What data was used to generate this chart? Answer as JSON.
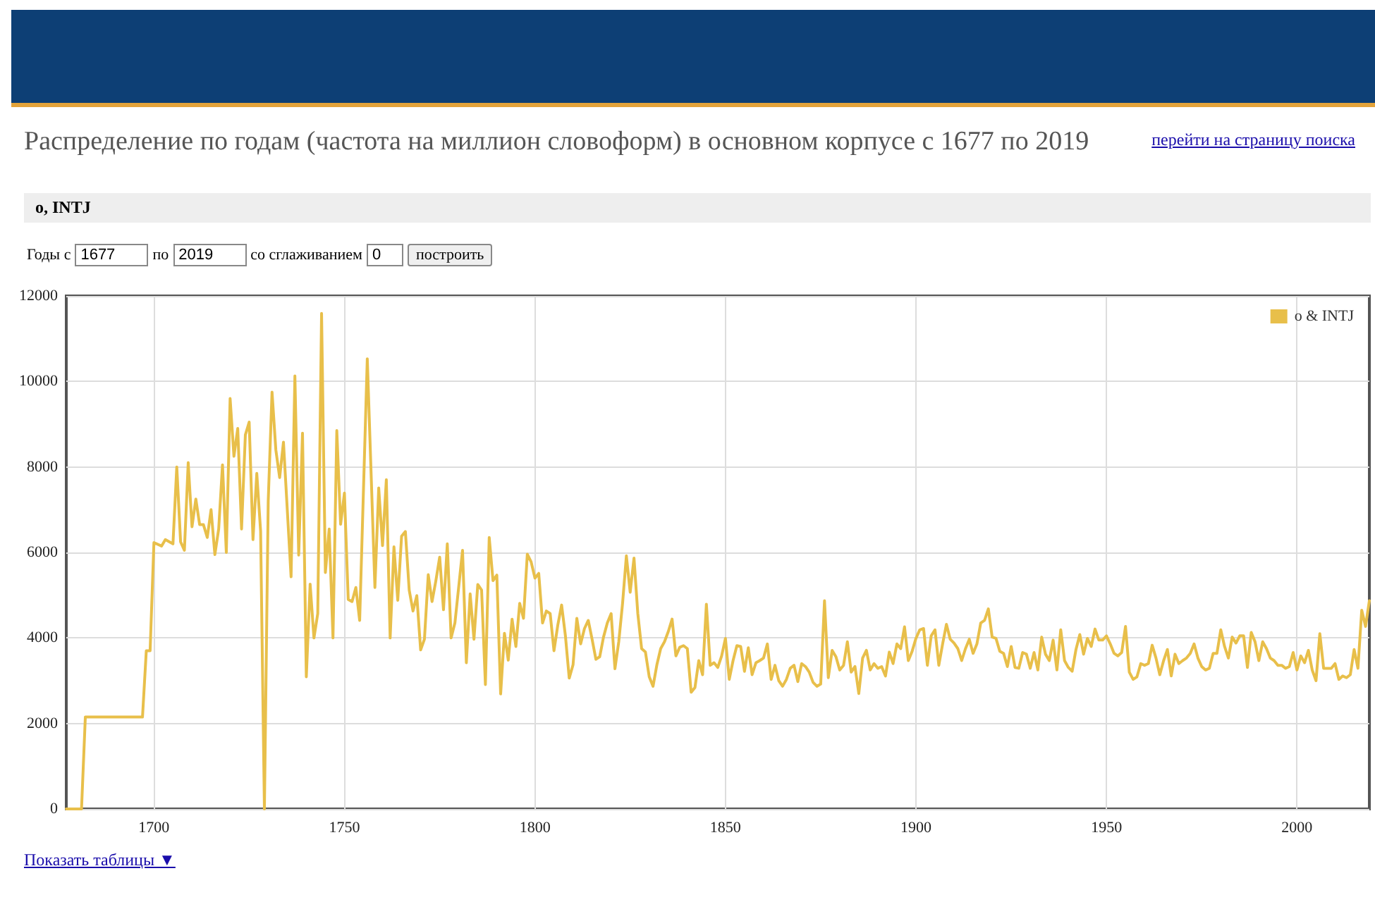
{
  "chart_data": {
    "type": "line",
    "title": "Распределение по годам (частота на миллион словоформ) в основном корпусе с 1677 по 2019",
    "subtitle": "о, INTJ",
    "annotations": [
      "перейти на страницу поиска",
      "Годы с",
      "1677",
      "по",
      "2019",
      "со сглаживанием",
      "0",
      "построить",
      "Показать таблицы ▼"
    ],
    "xlim": [
      1677,
      2019
    ],
    "xticks": [
      1700,
      1750,
      1800,
      1850,
      1900,
      1950,
      2000
    ],
    "ylim": [
      0,
      12000
    ],
    "yticks": [
      0,
      2000,
      4000,
      6000,
      8000,
      10000,
      12000
    ],
    "grid": true,
    "legend": "top right",
    "marker": "none",
    "line_style": "solid",
    "series": [
      {
        "name": "о & INTJ",
        "color": "#e8bf4a",
        "x": [
          1677,
          1681,
          1682,
          1697,
          1698,
          1699,
          1700,
          1702,
          1703,
          1705,
          1706,
          1707,
          1708,
          1709,
          1710,
          1711,
          1712,
          1713,
          1714,
          1715,
          1716,
          1717,
          1718,
          1719,
          1720,
          1721,
          1722,
          1723,
          1724,
          1725,
          1726,
          1727,
          1728,
          1729,
          1730,
          1731,
          1732,
          1733,
          1734,
          1736,
          1737,
          1738,
          1739,
          1740,
          1741,
          1742,
          1743,
          1744,
          1745,
          1746,
          1747,
          1748,
          1749,
          1750,
          1751,
          1752,
          1753,
          1754,
          1756,
          1758,
          1759,
          1760,
          1761,
          1762,
          1763,
          1764,
          1765,
          1766,
          1767,
          1768,
          1769,
          1770,
          1771,
          1772,
          1773,
          1774,
          1775,
          1776,
          1777,
          1778,
          1779,
          1781,
          1782,
          1783,
          1784,
          1785,
          1786,
          1787,
          1788,
          1789,
          1790,
          1791,
          1792,
          1793,
          1794,
          1795,
          1796,
          1797,
          1798,
          1799,
          1800,
          1801,
          1802,
          1803,
          1804,
          1805,
          1806,
          1807,
          1808,
          1809,
          1810,
          1811,
          1812,
          1813,
          1814,
          1815,
          1816,
          1817,
          1818,
          1819,
          1820,
          1821,
          1822,
          1823,
          1824,
          1825,
          1826,
          1827,
          1828,
          1829,
          1830,
          1831,
          1832,
          1833,
          1834,
          1835,
          1836,
          1837,
          1838,
          1839,
          1840,
          1841,
          1842,
          1843,
          1844,
          1845,
          1846,
          1847,
          1848,
          1849,
          1850,
          1851,
          1852,
          1853,
          1854,
          1855,
          1856,
          1857,
          1858,
          1859,
          1860,
          1861,
          1862,
          1863,
          1864,
          1865,
          1866,
          1867,
          1868,
          1869,
          1870,
          1871,
          1872,
          1873,
          1874,
          1875,
          1876,
          1877,
          1878,
          1879,
          1880,
          1881,
          1882,
          1883,
          1884,
          1885,
          1886,
          1887,
          1888,
          1889,
          1890,
          1891,
          1892,
          1893,
          1894,
          1895,
          1896,
          1897,
          1898,
          1899,
          1900,
          1901,
          1902,
          1903,
          1904,
          1905,
          1906,
          1907,
          1908,
          1909,
          1910,
          1911,
          1912,
          1913,
          1914,
          1915,
          1916,
          1917,
          1918,
          1919,
          1920,
          1921,
          1922,
          1923,
          1924,
          1925,
          1926,
          1927,
          1928,
          1929,
          1930,
          1931,
          1932,
          1933,
          1934,
          1935,
          1936,
          1937,
          1938,
          1939,
          1940,
          1941,
          1942,
          1943,
          1944,
          1945,
          1946,
          1947,
          1948,
          1949,
          1950,
          1951,
          1952,
          1953,
          1954,
          1955,
          1956,
          1957,
          1958,
          1959,
          1960,
          1961,
          1962,
          1963,
          1964,
          1965,
          1966,
          1967,
          1968,
          1969,
          1970,
          1971,
          1972,
          1973,
          1974,
          1975,
          1976,
          1977,
          1978,
          1979,
          1980,
          1981,
          1982,
          1983,
          1984,
          1985,
          1986,
          1987,
          1988,
          1989,
          1990,
          1991,
          1992,
          1993,
          1994,
          1995,
          1996,
          1997,
          1998,
          1999,
          2000,
          2001,
          2002,
          2003,
          2004,
          2005,
          2006,
          2007,
          2008,
          2009,
          2010,
          2011,
          2012,
          2013,
          2014,
          2015,
          2016,
          2017,
          2018,
          2019
        ],
        "values": [
          0,
          0,
          2150,
          2150,
          3700,
          3700,
          6230,
          6150,
          6300,
          6200,
          8000,
          6250,
          6050,
          8100,
          6600,
          7250,
          6650,
          6650,
          6350,
          7000,
          5950,
          6550,
          8050,
          6000,
          9600,
          8250,
          8900,
          6550,
          8750,
          9050,
          6300,
          7850,
          6500,
          0,
          7200,
          9750,
          8400,
          7750,
          8580,
          5430,
          10130,
          5940,
          8790,
          3090,
          5260,
          4000,
          4570,
          11590,
          5530,
          6550,
          4000,
          8850,
          6660,
          7390,
          4900,
          4850,
          5180,
          4410,
          10530,
          5180,
          7510,
          6160,
          7700,
          4000,
          6130,
          4880,
          6380,
          6490,
          5120,
          4630,
          4990,
          3720,
          3970,
          5480,
          4850,
          5340,
          5890,
          4660,
          6200,
          4000,
          4350,
          6050,
          3420,
          5030,
          3970,
          5250,
          5120,
          2910,
          6350,
          5340,
          5470,
          2690,
          4110,
          3480,
          4440,
          3800,
          4810,
          4460,
          5960,
          5780,
          5400,
          5510,
          4350,
          4630,
          4570,
          3700,
          4300,
          4770,
          4050,
          3060,
          3370,
          4460,
          3860,
          4220,
          4410,
          3970,
          3500,
          3560,
          4020,
          4350,
          4570,
          3280,
          3910,
          4810,
          5920,
          5070,
          5870,
          4570,
          3750,
          3670,
          3090,
          2870,
          3370,
          3750,
          3910,
          4150,
          4440,
          3580,
          3780,
          3820,
          3750,
          2730,
          2840,
          3470,
          3140,
          4790,
          3360,
          3420,
          3310,
          3580,
          3990,
          3030,
          3470,
          3820,
          3800,
          3220,
          3770,
          3140,
          3420,
          3470,
          3530,
          3860,
          3030,
          3360,
          3000,
          2870,
          3030,
          3290,
          3360,
          2980,
          3400,
          3330,
          3200,
          2960,
          2870,
          2920,
          4870,
          3070,
          3710,
          3560,
          3250,
          3360,
          3910,
          3200,
          3330,
          2700,
          3530,
          3710,
          3250,
          3400,
          3290,
          3330,
          3110,
          3670,
          3400,
          3860,
          3750,
          4260,
          3470,
          3690,
          3990,
          4190,
          4220,
          3360,
          4050,
          4190,
          3360,
          3860,
          4320,
          3970,
          3880,
          3750,
          3470,
          3750,
          3970,
          3640,
          3860,
          4350,
          4410,
          4680,
          4020,
          3990,
          3690,
          3640,
          3330,
          3800,
          3310,
          3290,
          3660,
          3620,
          3290,
          3660,
          3250,
          4020,
          3620,
          3470,
          3950,
          3250,
          4190,
          3470,
          3310,
          3220,
          3730,
          4080,
          3620,
          3990,
          3800,
          4210,
          3950,
          3950,
          4050,
          3860,
          3640,
          3580,
          3660,
          4270,
          3200,
          3030,
          3090,
          3400,
          3360,
          3400,
          3830,
          3530,
          3140,
          3470,
          3730,
          3110,
          3620,
          3400,
          3470,
          3530,
          3640,
          3860,
          3530,
          3330,
          3250,
          3290,
          3640,
          3640,
          4190,
          3800,
          3530,
          4020,
          3880,
          4050,
          4050,
          3310,
          4130,
          3910,
          3470,
          3910,
          3750,
          3530,
          3470,
          3360,
          3360,
          3290,
          3330,
          3660,
          3250,
          3580,
          3420,
          3710,
          3250,
          3000,
          4100,
          3290,
          3290,
          3290,
          3400,
          3030,
          3110,
          3070,
          3140,
          3730,
          3290,
          4650,
          4270,
          4870
        ]
      }
    ]
  }
}
